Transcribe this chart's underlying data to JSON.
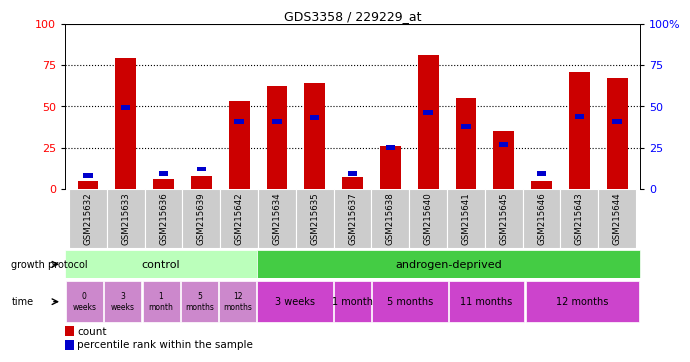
{
  "title": "GDS3358 / 229229_at",
  "samples": [
    "GSM215632",
    "GSM215633",
    "GSM215636",
    "GSM215639",
    "GSM215642",
    "GSM215634",
    "GSM215635",
    "GSM215637",
    "GSM215638",
    "GSM215640",
    "GSM215641",
    "GSM215645",
    "GSM215646",
    "GSM215643",
    "GSM215644"
  ],
  "count_values": [
    5,
    79,
    6,
    8,
    53,
    62,
    64,
    7,
    26,
    81,
    55,
    35,
    5,
    71,
    67
  ],
  "percentile_values": [
    8,
    49,
    9,
    12,
    41,
    41,
    43,
    9,
    25,
    46,
    38,
    27,
    9,
    44,
    41
  ],
  "bar_color": "#cc0000",
  "dot_color": "#0000cc",
  "ylim": [
    0,
    100
  ],
  "yticks": [
    0,
    25,
    50,
    75,
    100
  ],
  "ytick_labels_left": [
    "0",
    "25",
    "50",
    "75",
    "100"
  ],
  "ytick_labels_right": [
    "0",
    "25",
    "50",
    "75",
    "100%"
  ],
  "background_color": "#ffffff",
  "tick_area_color": "#cccccc",
  "control_color": "#bbffbb",
  "androgen_color": "#44cc44",
  "time_color_control": "#cc88cc",
  "time_color_androgen": "#cc44cc",
  "legend_count_label": "count",
  "legend_pct_label": "percentile rank within the sample",
  "control_count": 5,
  "androgen_group_sizes": [
    2,
    1,
    2,
    2,
    3
  ],
  "time_labels_control": [
    "0\nweeks",
    "3\nweeks",
    "1\nmonth",
    "5\nmonths",
    "12\nmonths"
  ],
  "time_labels_androgen": [
    "3 weeks",
    "1 month",
    "5 months",
    "11 months",
    "12 months"
  ]
}
